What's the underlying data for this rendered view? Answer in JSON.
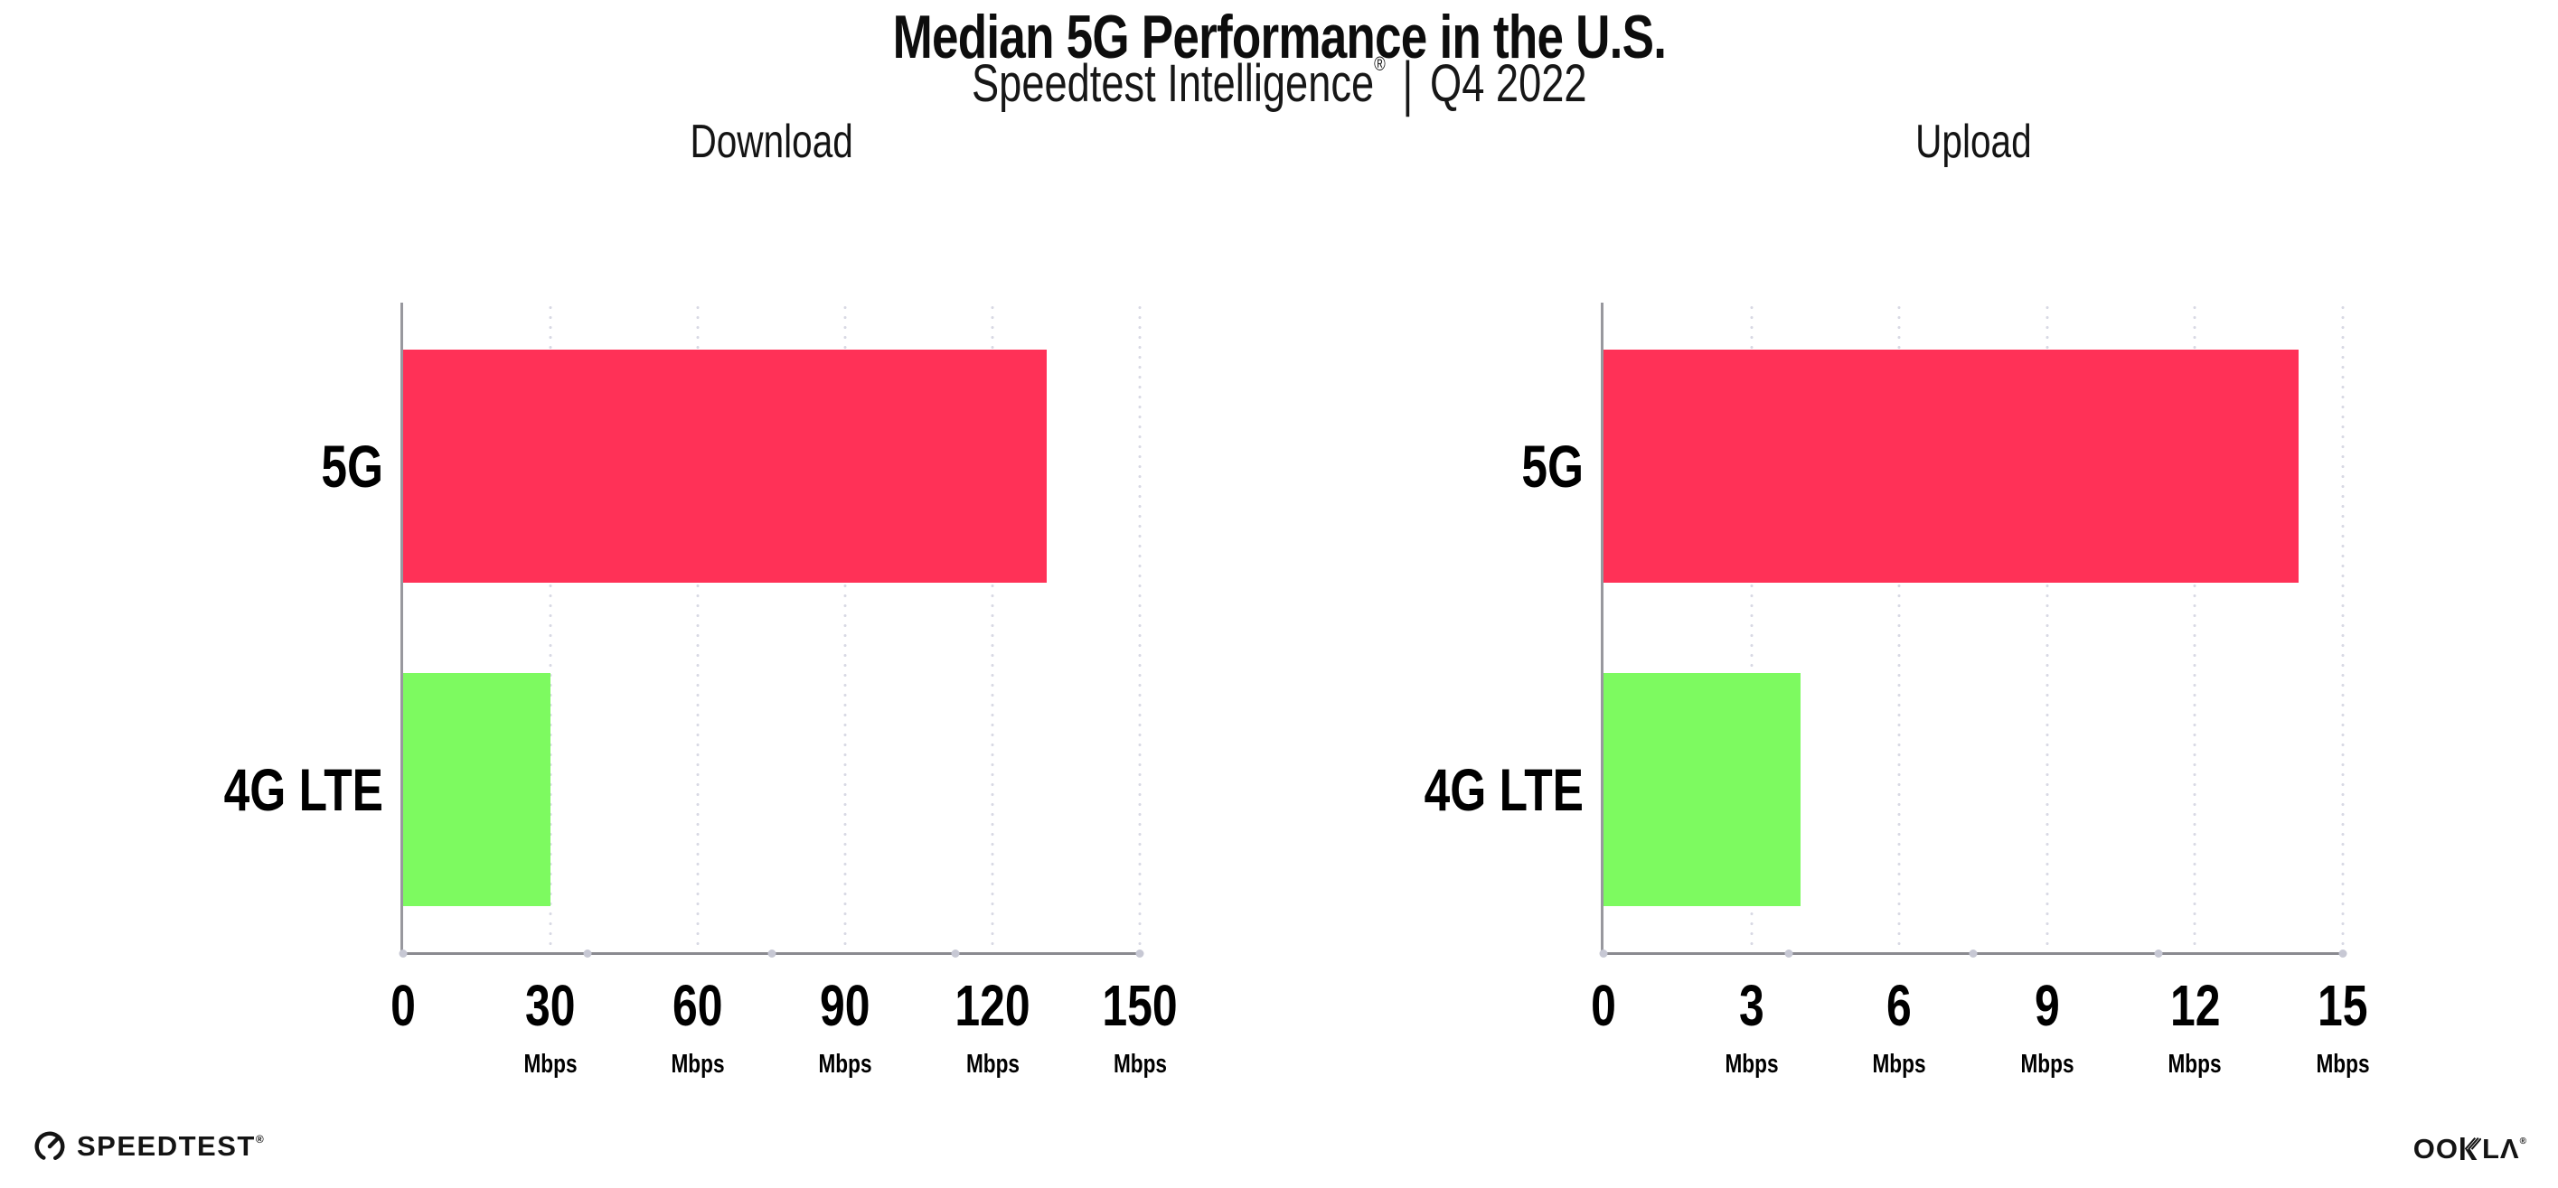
{
  "header": {
    "title": "Median 5G Performance in the U.S.",
    "subtitle": {
      "brand": "Speedtest Intelligence",
      "registered": "®",
      "separator": "|",
      "period": "Q4 2022"
    }
  },
  "chart_data": [
    {
      "type": "bar",
      "orientation": "horizontal",
      "title": "Download",
      "unit": "Mbps",
      "categories": [
        "5G",
        "4G LTE"
      ],
      "values": [
        131,
        30
      ],
      "xlim": [
        0,
        150
      ],
      "xticks": [
        0,
        30,
        60,
        90,
        120,
        150
      ],
      "grid": "dotted-vertical-light",
      "legend": "none"
    },
    {
      "type": "bar",
      "orientation": "horizontal",
      "title": "Upload",
      "unit": "Mbps",
      "categories": [
        "5G",
        "4G LTE"
      ],
      "values": [
        14.1,
        4
      ],
      "xlim": [
        0,
        15
      ],
      "xticks": [
        0,
        3,
        6,
        9,
        12,
        15
      ],
      "grid": "dotted-vertical-light",
      "legend": "none"
    }
  ],
  "colors": {
    "bar_5g": "#FF3157",
    "bar_4g_lte": "#7DFA60",
    "gridline": "#D8D9E4",
    "axis": "#8A8A90",
    "text": "#111111"
  },
  "footer": {
    "speedtest_logo_text": "SPEEDTEST",
    "speedtest_registered": "®",
    "ookla_logo_text_oo": "OO",
    "ookla_logo_text_la": "LΛ",
    "ookla_registered": "®"
  }
}
